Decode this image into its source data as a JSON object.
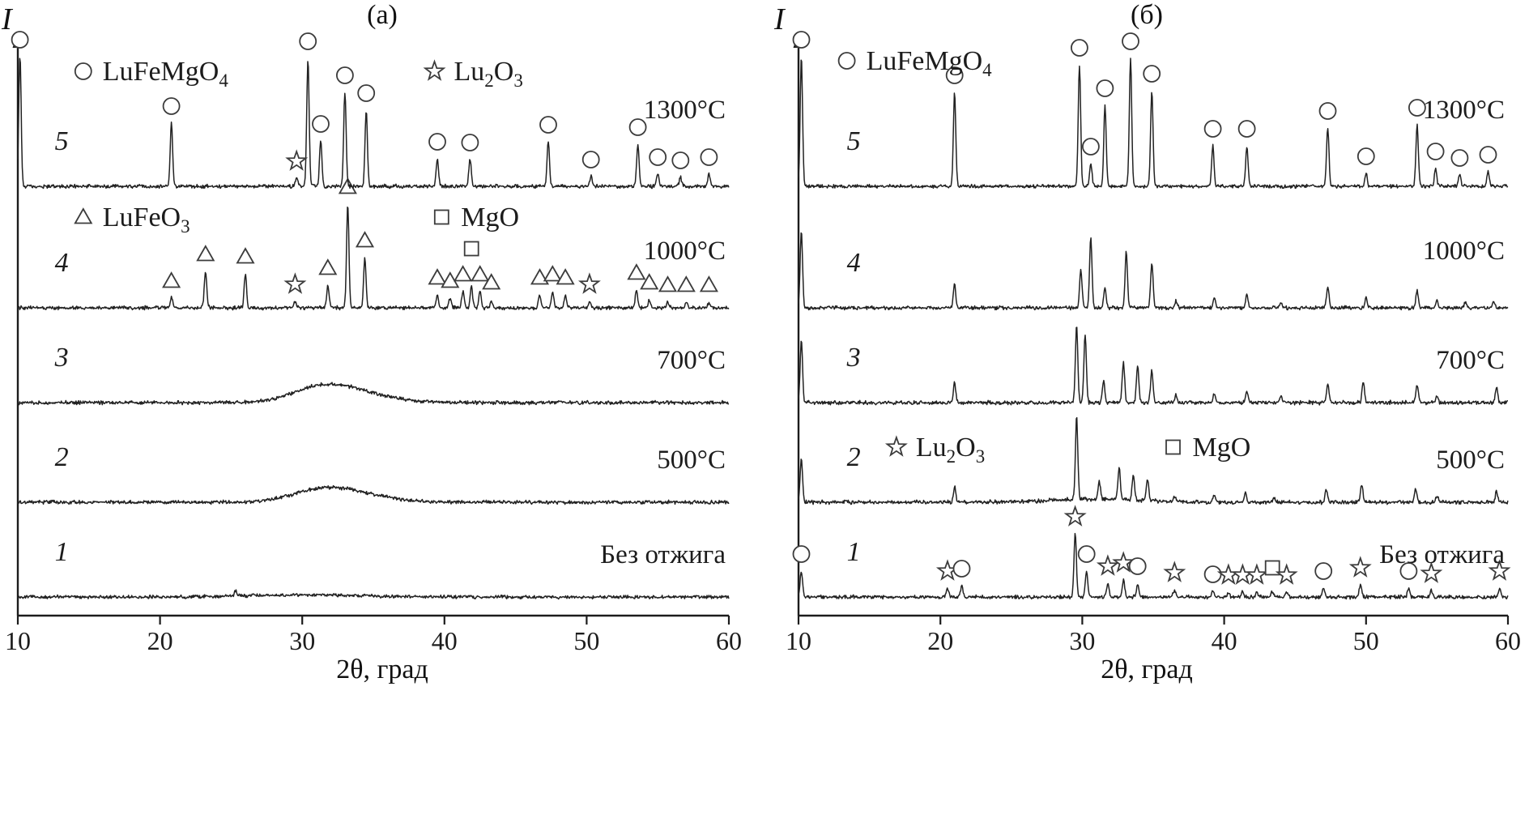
{
  "figure": {
    "background": "#ffffff",
    "ink": "#1c1c1c",
    "marker_stroke": "#3c3c3c"
  },
  "chart_data": {
    "type": "line",
    "description": "Two panels of stacked X-ray diffraction patterns (intensity vs 2-theta) for samples annealed at different temperatures; hollow markers identify phases.",
    "xlabel": "2θ, град",
    "ylabel": "I",
    "xlim": [
      10,
      60
    ],
    "xticks": [
      "10",
      "20",
      "30",
      "40",
      "50",
      "60"
    ],
    "phase_markers": {
      "circle": "LuFeMgO4",
      "star": "Lu2O3",
      "triangle": "LuFeO3",
      "square": "MgO"
    },
    "panels": [
      {
        "id": "a",
        "title": "(а)",
        "num_theta": 12.6,
        "legend": [
          {
            "marker": "circle",
            "label": "LuFeMgO4",
            "theta": 14.6,
            "y": 88
          },
          {
            "marker": "star",
            "label": "Lu2O3",
            "theta": 39.3,
            "y": 88
          },
          {
            "marker": "triangle",
            "label": "LuFeO3",
            "theta": 14.6,
            "y": 268
          },
          {
            "marker": "square",
            "label": "MgO",
            "theta": 39.8,
            "y": 268
          }
        ],
        "curves": [
          {
            "n": "1",
            "temp": "Без отжига",
            "noise": 1.5,
            "peaks": [
              [
                25.3,
                7,
                0.07
              ]
            ],
            "humps": [
              [
                30,
                2.5,
                4
              ]
            ],
            "markers": []
          },
          {
            "n": "2",
            "temp": "500°C",
            "noise": 1.6,
            "peaks": [],
            "humps": [
              [
                31.2,
                13,
                2.0
              ],
              [
                33.8,
                9,
                2.3
              ]
            ],
            "markers": []
          },
          {
            "n": "3",
            "temp": "700°C",
            "noise": 1.6,
            "peaks": [],
            "humps": [
              [
                31.2,
                16,
                2.0
              ],
              [
                33.8,
                11,
                2.3
              ]
            ],
            "markers": []
          },
          {
            "n": "4",
            "temp": "1000°C",
            "noise": 1.6,
            "peaks": [
              [
                20.8,
                12
              ],
              [
                23.2,
                45
              ],
              [
                26.0,
                42
              ],
              [
                29.5,
                8
              ],
              [
                31.8,
                28
              ],
              [
                33.2,
                128
              ],
              [
                34.4,
                62
              ],
              [
                39.5,
                16
              ],
              [
                40.4,
                12
              ],
              [
                41.3,
                20
              ],
              [
                41.9,
                26
              ],
              [
                42.5,
                20
              ],
              [
                43.3,
                10
              ],
              [
                46.7,
                16
              ],
              [
                47.6,
                20
              ],
              [
                48.5,
                16
              ],
              [
                50.2,
                8
              ],
              [
                53.5,
                22
              ],
              [
                54.4,
                10
              ],
              [
                55.7,
                7
              ],
              [
                57.0,
                7
              ],
              [
                58.6,
                7
              ]
            ],
            "humps": [],
            "markers": [
              [
                "triangle",
                20.8
              ],
              [
                "triangle",
                23.2
              ],
              [
                "triangle",
                26.0
              ],
              [
                "star",
                29.5
              ],
              [
                "triangle",
                31.8
              ],
              [
                "triangle",
                33.2
              ],
              [
                "triangle",
                34.4
              ],
              [
                "triangle",
                39.5
              ],
              [
                "triangle",
                40.4
              ],
              [
                "triangle",
                41.3
              ],
              [
                "square",
                41.9,
                -26
              ],
              [
                "triangle",
                42.5
              ],
              [
                "triangle",
                43.3
              ],
              [
                "triangle",
                46.7
              ],
              [
                "triangle",
                47.6
              ],
              [
                "triangle",
                48.5
              ],
              [
                "star",
                50.2
              ],
              [
                "triangle",
                53.5
              ],
              [
                "triangle",
                54.4
              ],
              [
                "triangle",
                55.7
              ],
              [
                "triangle",
                57.0
              ],
              [
                "triangle",
                58.6
              ]
            ]
          },
          {
            "n": "5",
            "temp": "1300°C",
            "noise": 1.6,
            "peaks": [
              [
                10.15,
                160
              ],
              [
                20.8,
                78
              ],
              [
                29.6,
                10
              ],
              [
                30.4,
                158
              ],
              [
                31.3,
                56
              ],
              [
                33.0,
                116
              ],
              [
                34.5,
                94
              ],
              [
                39.5,
                34
              ],
              [
                41.8,
                33
              ],
              [
                47.3,
                55
              ],
              [
                50.3,
                12
              ],
              [
                53.6,
                52
              ],
              [
                55.0,
                15
              ],
              [
                56.6,
                11
              ],
              [
                58.6,
                15
              ]
            ],
            "humps": [],
            "markers": [
              [
                "circle",
                10.15
              ],
              [
                "circle",
                20.8
              ],
              [
                "star",
                29.6
              ],
              [
                "circle",
                30.4
              ],
              [
                "circle",
                31.3
              ],
              [
                "circle",
                33.0
              ],
              [
                "circle",
                34.5
              ],
              [
                "circle",
                39.5
              ],
              [
                "circle",
                41.8
              ],
              [
                "circle",
                47.3
              ],
              [
                "circle",
                50.3
              ],
              [
                "circle",
                53.6
              ],
              [
                "circle",
                55.0
              ],
              [
                "circle",
                56.6
              ],
              [
                "circle",
                58.6
              ]
            ]
          }
        ]
      },
      {
        "id": "b",
        "title": "(б)",
        "num_theta": 13.4,
        "legend": [
          {
            "marker": "circle",
            "label": "LuFeMgO4",
            "theta": 13.4,
            "y": 75
          },
          {
            "marker": "star",
            "label": "Lu2O3",
            "theta": 16.9,
            "y": 552
          },
          {
            "marker": "square",
            "label": "MgO",
            "theta": 36.4,
            "y": 552
          }
        ],
        "curves": [
          {
            "n": "1",
            "temp": "Без отжига",
            "noise": 1.6,
            "peaks": [
              [
                10.2,
                32
              ],
              [
                20.5,
                11
              ],
              [
                21.5,
                14
              ],
              [
                29.5,
                78
              ],
              [
                30.3,
                32
              ],
              [
                31.8,
                17
              ],
              [
                32.9,
                21
              ],
              [
                33.9,
                17
              ],
              [
                36.5,
                9
              ],
              [
                39.2,
                7
              ],
              [
                40.3,
                6
              ],
              [
                41.3,
                6
              ],
              [
                42.3,
                6
              ],
              [
                43.4,
                7
              ],
              [
                44.4,
                6
              ],
              [
                47.0,
                11
              ],
              [
                49.6,
                15
              ],
              [
                53.0,
                11
              ],
              [
                54.6,
                8
              ],
              [
                59.4,
                11
              ]
            ],
            "humps": [],
            "markers": [
              [
                "circle",
                10.2
              ],
              [
                "star",
                20.5
              ],
              [
                "circle",
                21.5
              ],
              [
                "star",
                29.5
              ],
              [
                "circle",
                30.3
              ],
              [
                "star",
                31.8
              ],
              [
                "star",
                32.9
              ],
              [
                "circle",
                33.9
              ],
              [
                "star",
                36.5
              ],
              [
                "circle",
                39.2
              ],
              [
                "star",
                40.3
              ],
              [
                "star",
                41.3
              ],
              [
                "star",
                42.3
              ],
              [
                "square",
                43.4,
                -8
              ],
              [
                "star",
                44.4
              ],
              [
                "circle",
                47.0
              ],
              [
                "star",
                49.6
              ],
              [
                "circle",
                53.0
              ],
              [
                "star",
                54.6
              ],
              [
                "star",
                59.4
              ]
            ]
          },
          {
            "n": "2",
            "temp": "500°C",
            "noise": 1.7,
            "peaks": [
              [
                10.2,
                55
              ],
              [
                21.0,
                19
              ],
              [
                29.6,
                102
              ],
              [
                31.2,
                21
              ],
              [
                32.6,
                40
              ],
              [
                33.6,
                31
              ],
              [
                34.6,
                27
              ],
              [
                36.5,
                7
              ],
              [
                39.3,
                9
              ],
              [
                41.5,
                11
              ],
              [
                43.5,
                6
              ],
              [
                47.2,
                15
              ],
              [
                49.7,
                21
              ],
              [
                53.5,
                17
              ],
              [
                55.0,
                7
              ],
              [
                59.2,
                13
              ]
            ],
            "humps": [
              [
                31,
                4,
                3
              ]
            ],
            "markers": []
          },
          {
            "n": "3",
            "temp": "700°C",
            "noise": 1.7,
            "peaks": [
              [
                10.2,
                78
              ],
              [
                21.0,
                25
              ],
              [
                29.6,
                95
              ],
              [
                30.2,
                85
              ],
              [
                31.5,
                27
              ],
              [
                32.9,
                50
              ],
              [
                33.9,
                46
              ],
              [
                34.9,
                40
              ],
              [
                36.6,
                9
              ],
              [
                39.3,
                11
              ],
              [
                41.6,
                13
              ],
              [
                44.0,
                7
              ],
              [
                47.3,
                23
              ],
              [
                49.8,
                27
              ],
              [
                53.6,
                23
              ],
              [
                55.0,
                9
              ],
              [
                59.2,
                18
              ]
            ],
            "humps": [],
            "markers": []
          },
          {
            "n": "4",
            "temp": "1000°C",
            "noise": 1.6,
            "peaks": [
              [
                10.2,
                95
              ],
              [
                21.0,
                30
              ],
              [
                29.9,
                46
              ],
              [
                30.6,
                86
              ],
              [
                31.6,
                26
              ],
              [
                33.1,
                70
              ],
              [
                34.9,
                56
              ],
              [
                36.6,
                8
              ],
              [
                39.3,
                13
              ],
              [
                41.6,
                15
              ],
              [
                44.0,
                6
              ],
              [
                47.3,
                26
              ],
              [
                50.0,
                13
              ],
              [
                53.6,
                22
              ],
              [
                55.0,
                8
              ],
              [
                57.0,
                6
              ],
              [
                59.0,
                8
              ]
            ],
            "humps": [],
            "markers": []
          },
          {
            "n": "5",
            "temp": "1300°C",
            "noise": 1.5,
            "peaks": [
              [
                10.2,
                160
              ],
              [
                21.0,
                116
              ],
              [
                29.8,
                150
              ],
              [
                30.6,
                28
              ],
              [
                31.6,
                100
              ],
              [
                33.4,
                158
              ],
              [
                34.9,
                118
              ],
              [
                39.2,
                50
              ],
              [
                41.6,
                50
              ],
              [
                47.3,
                72
              ],
              [
                50.0,
                16
              ],
              [
                53.6,
                76
              ],
              [
                54.9,
                22
              ],
              [
                56.6,
                14
              ],
              [
                58.6,
                18
              ]
            ],
            "humps": [],
            "markers": [
              [
                "circle",
                10.2
              ],
              [
                "circle",
                21.0
              ],
              [
                "circle",
                29.8
              ],
              [
                "circle",
                30.6
              ],
              [
                "circle",
                31.6
              ],
              [
                "circle",
                33.4
              ],
              [
                "circle",
                34.9
              ],
              [
                "circle",
                39.2
              ],
              [
                "circle",
                41.6
              ],
              [
                "circle",
                47.3
              ],
              [
                "circle",
                50.0
              ],
              [
                "circle",
                53.6
              ],
              [
                "circle",
                54.9
              ],
              [
                "circle",
                56.6
              ],
              [
                "circle",
                58.6
              ]
            ]
          }
        ]
      }
    ]
  }
}
